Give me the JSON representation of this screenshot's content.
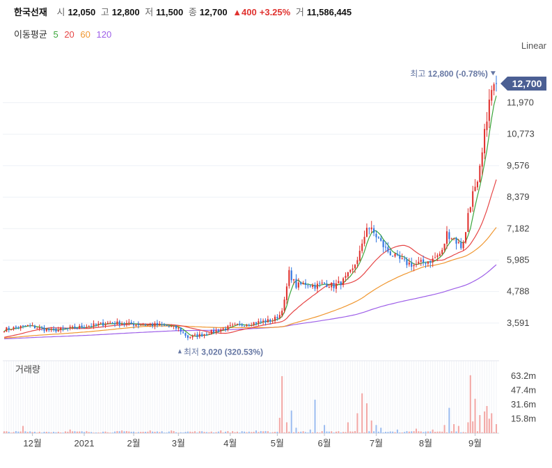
{
  "header": {
    "stock_name": "한국선재",
    "open_label": "시",
    "open": "12,050",
    "high_label": "고",
    "high": "12,800",
    "low_label": "저",
    "low": "11,500",
    "close_label": "종",
    "close": "12,700",
    "change": "▲400",
    "change_pct": "+3.25%",
    "volume_label": "거",
    "volume": "11,586,445"
  },
  "ma_legend": {
    "label": "이동평균",
    "items": [
      {
        "label": "5",
        "color": "#3aa53a"
      },
      {
        "label": "20",
        "color": "#e64545"
      },
      {
        "label": "60",
        "color": "#f0962e"
      },
      {
        "label": "120",
        "color": "#9d5ee8"
      }
    ]
  },
  "scale_mode": "Linear",
  "volume_panel_label": "거래량",
  "colors": {
    "up": "#e0322f",
    "down": "#2f74e0",
    "grid": "#eef1f6",
    "annotation": "#6677a3"
  },
  "chart_data": {
    "type": "candlestick",
    "price_axis": {
      "ticks": [
        3591,
        4788,
        5985,
        7182,
        8379,
        9576,
        10773,
        11970
      ],
      "tick_labels": [
        "3,591",
        "4,788",
        "5,985",
        "7,182",
        "8,379",
        "9,576",
        "10,773",
        "11,970"
      ],
      "ylim": [
        2500,
        13600
      ]
    },
    "volume_axis": {
      "ticks": [
        15800000,
        31600000,
        47400000,
        63200000
      ],
      "tick_labels": [
        "15.8m",
        "31.6m",
        "47.4m",
        "63.2m"
      ],
      "ylim": [
        0,
        80000000
      ]
    },
    "x_axis": {
      "ticks": [
        {
          "label": "12월",
          "day": 12
        },
        {
          "label": "2021",
          "day": 34
        },
        {
          "label": "2월",
          "day": 55
        },
        {
          "label": "3월",
          "day": 74
        },
        {
          "label": "4월",
          "day": 96
        },
        {
          "label": "5월",
          "day": 116
        },
        {
          "label": "6월",
          "day": 136
        },
        {
          "label": "7월",
          "day": 158
        },
        {
          "label": "8월",
          "day": 179
        },
        {
          "label": "9월",
          "day": 200
        }
      ],
      "xlim": [
        0,
        209
      ]
    },
    "last_price": {
      "value": 12700,
      "label": "12,700"
    },
    "annotations": {
      "high": {
        "label": "최고",
        "value": "12,800",
        "note": "(-0.78%)",
        "price": 12800,
        "day": 206
      },
      "low": {
        "label": "최저",
        "value": "3,020",
        "note": "(320.53%)",
        "price": 3020,
        "day": 78
      }
    },
    "price_anchors": [
      [
        0,
        3350
      ],
      [
        10,
        3480
      ],
      [
        20,
        3300
      ],
      [
        34,
        3450
      ],
      [
        45,
        3600
      ],
      [
        55,
        3550
      ],
      [
        68,
        3500
      ],
      [
        74,
        3380
      ],
      [
        78,
        3050
      ],
      [
        84,
        3150
      ],
      [
        90,
        3300
      ],
      [
        96,
        3450
      ],
      [
        106,
        3600
      ],
      [
        114,
        3700
      ],
      [
        117,
        3900
      ],
      [
        119,
        4400
      ],
      [
        121,
        5500
      ],
      [
        124,
        5000
      ],
      [
        128,
        5100
      ],
      [
        132,
        5000
      ],
      [
        136,
        5100
      ],
      [
        140,
        5000
      ],
      [
        144,
        5200
      ],
      [
        148,
        5600
      ],
      [
        152,
        6500
      ],
      [
        154,
        7300
      ],
      [
        158,
        6900
      ],
      [
        162,
        6400
      ],
      [
        166,
        6100
      ],
      [
        170,
        5900
      ],
      [
        174,
        5800
      ],
      [
        178,
        5900
      ],
      [
        182,
        6000
      ],
      [
        186,
        6300
      ],
      [
        188,
        7000
      ],
      [
        191,
        6800
      ],
      [
        194,
        6500
      ],
      [
        196,
        7000
      ],
      [
        197,
        7800
      ],
      [
        199,
        8500
      ],
      [
        201,
        8800
      ],
      [
        203,
        10000
      ],
      [
        205,
        11500
      ],
      [
        207,
        12400
      ],
      [
        209,
        12700
      ]
    ],
    "volume_spikes": [
      [
        8,
        8
      ],
      [
        28,
        4
      ],
      [
        50,
        3
      ],
      [
        62,
        3
      ],
      [
        71,
        3
      ],
      [
        92,
        3
      ],
      [
        107,
        3
      ],
      [
        117,
        17
      ],
      [
        118,
        63
      ],
      [
        120,
        12
      ],
      [
        122,
        25
      ],
      [
        124,
        6
      ],
      [
        130,
        4
      ],
      [
        132,
        37
      ],
      [
        136,
        9
      ],
      [
        146,
        12
      ],
      [
        150,
        22
      ],
      [
        152,
        44
      ],
      [
        154,
        33
      ],
      [
        156,
        14
      ],
      [
        158,
        9
      ],
      [
        160,
        6
      ],
      [
        167,
        4
      ],
      [
        175,
        5
      ],
      [
        182,
        4
      ],
      [
        187,
        9
      ],
      [
        189,
        28
      ],
      [
        191,
        10
      ],
      [
        193,
        8
      ],
      [
        197,
        12
      ],
      [
        198,
        64
      ],
      [
        199,
        13
      ],
      [
        200,
        38
      ],
      [
        202,
        20
      ],
      [
        204,
        24
      ],
      [
        205,
        30
      ],
      [
        206,
        16
      ],
      [
        207,
        22
      ],
      [
        209,
        10
      ]
    ]
  }
}
